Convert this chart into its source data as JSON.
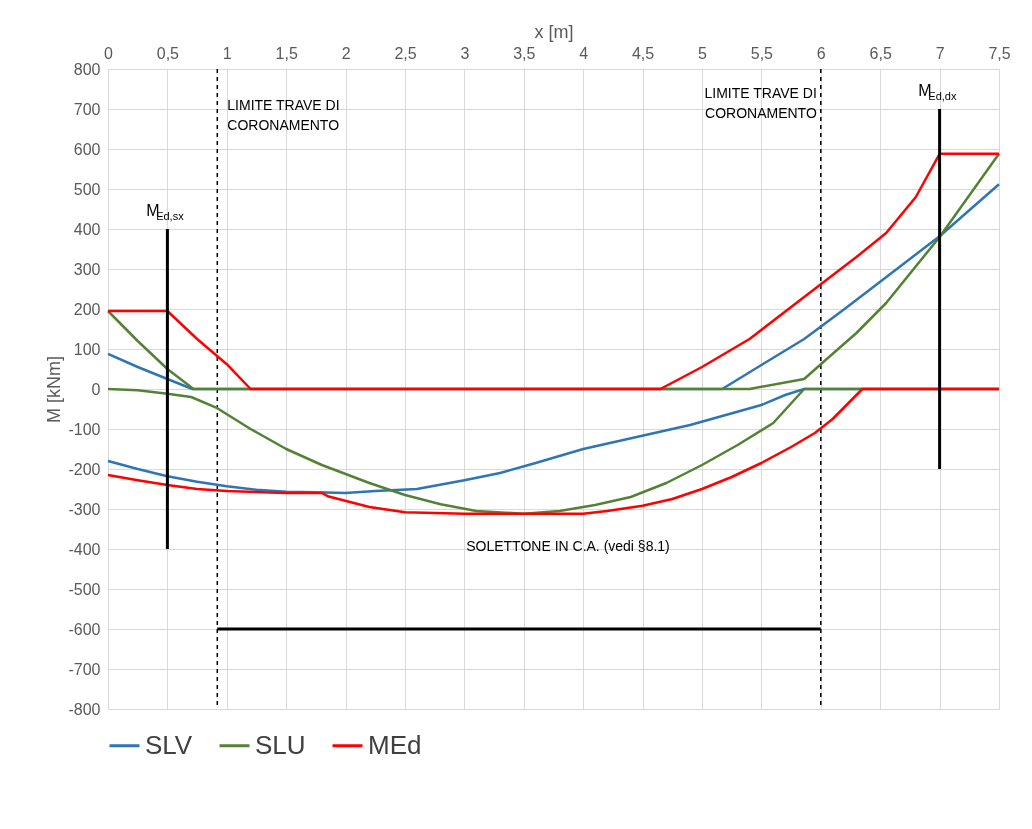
{
  "chart_data": {
    "type": "line",
    "xlabel": "x [m]",
    "ylabel": "M [kNm]",
    "xlim": [
      0,
      7.5
    ],
    "ylim": [
      -800,
      800
    ],
    "xticks": [
      0,
      {
        "value": 0.5,
        "label": "0,5"
      },
      1,
      {
        "value": 1.5,
        "label": "1,5"
      },
      2,
      {
        "value": 2.5,
        "label": "2,5"
      },
      3,
      {
        "value": 3.5,
        "label": "3,5"
      },
      4,
      {
        "value": 4.5,
        "label": "4,5"
      },
      5,
      {
        "value": 5.5,
        "label": "5,5"
      },
      6,
      {
        "value": 6.5,
        "label": "6,5"
      },
      7,
      {
        "value": 7.5,
        "label": "7,5"
      }
    ],
    "yticks": [
      -800,
      -700,
      -600,
      -500,
      -400,
      -300,
      -200,
      -100,
      0,
      100,
      200,
      300,
      400,
      500,
      600,
      700,
      800
    ],
    "grid": true,
    "legend": "bottom",
    "series": [
      {
        "name": "SLV",
        "color": "#2e75b6",
        "x": [
          0,
          0.25,
          0.5,
          0.71,
          5.17,
          5.5,
          5.86,
          6.2,
          6.53,
          7,
          7.5,
          null,
          0,
          0.25,
          0.5,
          0.75,
          1,
          1.25,
          1.5,
          1.75,
          2,
          2.25,
          2.6,
          3,
          3.3,
          3.6,
          4,
          4.3,
          4.6,
          4.9,
          5.2,
          5.5,
          5.7,
          5.86,
          7.5
        ],
        "values": [
          88,
          55,
          25,
          0,
          0,
          60,
          125,
          200,
          275,
          382,
          512,
          null,
          -180,
          -200,
          -218,
          -232,
          -243,
          -252,
          -257,
          -258,
          -260,
          -255,
          -250,
          -228,
          -210,
          -185,
          -150,
          -130,
          -110,
          -90,
          -65,
          -40,
          -15,
          0,
          0
        ]
      },
      {
        "name": "SLU",
        "color": "#548235",
        "x": [
          0,
          0.25,
          0.5,
          0.72,
          5.4,
          5.86,
          6.05,
          6.3,
          6.55,
          7,
          7.5,
          null,
          0,
          0.25,
          0.5,
          0.7,
          0.92,
          1.2,
          1.5,
          1.8,
          2.2,
          2.5,
          2.8,
          3.1,
          3.5,
          3.8,
          4.1,
          4.4,
          4.7,
          5.0,
          5.3,
          5.6,
          5.86,
          7.5
        ],
        "values": [
          195,
          120,
          50,
          0,
          0,
          25,
          75,
          140,
          215,
          380,
          588,
          null,
          0,
          -3,
          -12,
          -20,
          -48,
          -100,
          -150,
          -190,
          -235,
          -265,
          -288,
          -305,
          -312,
          -305,
          -290,
          -270,
          -235,
          -190,
          -140,
          -85,
          0,
          0
        ]
      },
      {
        "name": "MEd",
        "color": "#ff0000",
        "x": [
          0,
          0.5,
          0.75,
          1,
          1.2,
          4.65,
          5.0,
          5.4,
          5.86,
          6.3,
          6.55,
          6.8,
          7,
          7.5,
          null,
          0,
          0.25,
          0.5,
          0.75,
          1,
          1.5,
          1.8,
          1.85,
          2.2,
          2.5,
          3,
          3.5,
          4,
          4.2,
          4.5,
          4.75,
          5,
          5.25,
          5.5,
          5.75,
          5.95,
          6.1,
          6.2,
          6.35,
          7.5
        ],
        "values": [
          195,
          195,
          125,
          62,
          0,
          0,
          55,
          125,
          230,
          330,
          390,
          480,
          588,
          588,
          null,
          -215,
          -228,
          -240,
          -250,
          -255,
          -260,
          -260,
          -268,
          -295,
          -308,
          -312,
          -312,
          -312,
          -305,
          -292,
          -275,
          -250,
          -220,
          -185,
          -145,
          -110,
          -75,
          -45,
          0,
          0
        ]
      },
      {
        "color": "#000000",
        "x": [
          0.5,
          0.5
        ],
        "values": [
          -400,
          400
        ]
      },
      {
        "color": "#000000",
        "x": [
          7,
          7
        ],
        "values": [
          -200,
          700
        ]
      },
      {
        "color": "#000000",
        "x": [
          0.92,
          6.0
        ],
        "values": [
          -600,
          -600
        ]
      }
    ],
    "ref_lines": [
      {
        "axis": "x",
        "value": 0.92,
        "label": "LIMITE TRAVE DI\nCORONAMENTO",
        "color": "#000000",
        "line_style": "dashed"
      },
      {
        "axis": "x",
        "value": 6.0,
        "label": "LIMITE TRAVE DI\nCORONAMENTO",
        "color": "#000000",
        "line_style": "dashed"
      }
    ],
    "annotations": [
      {
        "text": "M$_{Ed,sx}$",
        "x": 0.5,
        "y": 400
      },
      {
        "text": "M$_{Ed,dx}$",
        "x": 7,
        "y": 700
      },
      "SOLETTONE IN C.A. (vedi §8.1)"
    ]
  }
}
